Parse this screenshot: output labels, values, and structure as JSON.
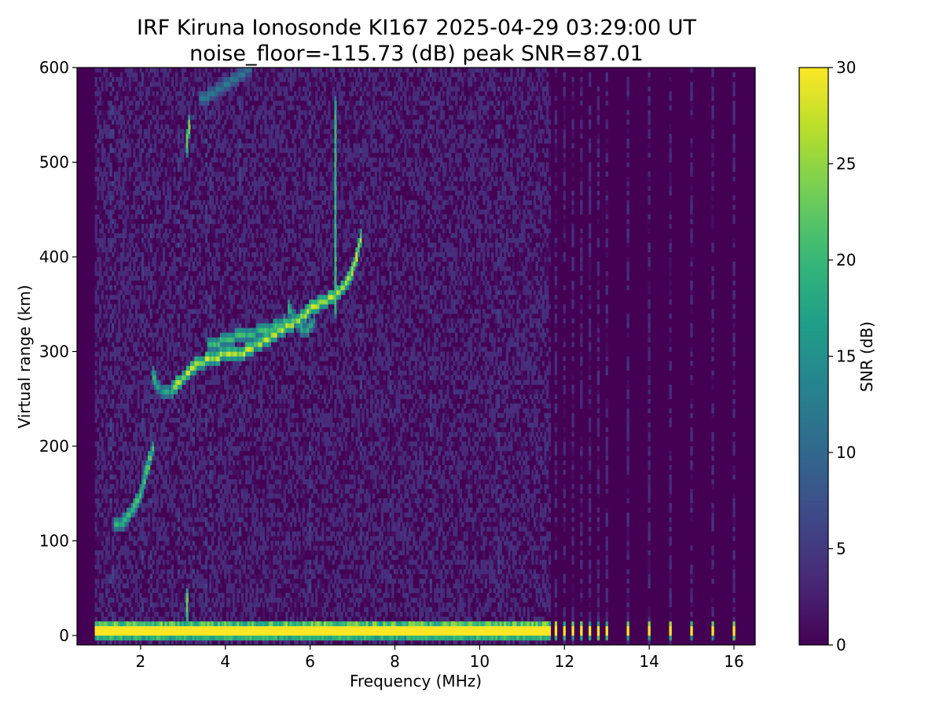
{
  "chart_data": {
    "type": "heatmap",
    "title_lines": [
      "IRF Kiruna Ionosonde KI167 2025-04-29 03:29:00  UT",
      "noise_floor=-115.73 (dB) peak SNR=87.01"
    ],
    "xlabel": "Frequency (MHz)",
    "ylabel": "Virtual range (km)",
    "colorbar_label": "SNR (dB)",
    "xlim": [
      0.5,
      16.5
    ],
    "ylim": [
      -10,
      600
    ],
    "clim": [
      0,
      30
    ],
    "x_ticks": [
      2,
      4,
      6,
      8,
      10,
      12,
      14,
      16
    ],
    "y_ticks": [
      0,
      100,
      200,
      300,
      400,
      500,
      600
    ],
    "colorbar_ticks": [
      0,
      5,
      10,
      15,
      20,
      25,
      30
    ],
    "colormap": [
      "#440154",
      "#482878",
      "#3e4989",
      "#31688e",
      "#26828e",
      "#1f9e89",
      "#35b779",
      "#6ece58",
      "#b5de2b",
      "#fde725"
    ],
    "data_freq_range": [
      0.95,
      16.0
    ],
    "continuous_band_freq_range": [
      0.95,
      11.65
    ],
    "discrete_column_freqs": [
      11.8,
      12.0,
      12.2,
      12.4,
      12.6,
      12.8,
      13.0,
      13.5,
      14.0,
      14.5,
      15.0,
      15.5,
      16.0
    ],
    "traces": [
      {
        "name": "ground-echo",
        "snr": 30,
        "points": [
          [
            0.95,
            0
          ],
          [
            2.0,
            0
          ],
          [
            4.0,
            0
          ],
          [
            6.0,
            0
          ],
          [
            8.0,
            0
          ],
          [
            10.0,
            0
          ],
          [
            11.65,
            0
          ]
        ]
      },
      {
        "name": "low-trace",
        "snr": 20,
        "points": [
          [
            1.4,
            115
          ],
          [
            1.6,
            120
          ],
          [
            1.8,
            132
          ],
          [
            2.0,
            148
          ],
          [
            2.15,
            175
          ],
          [
            2.3,
            198
          ]
        ]
      },
      {
        "name": "cusp",
        "snr": 18,
        "points": [
          [
            2.3,
            275
          ],
          [
            2.4,
            262
          ],
          [
            2.6,
            256
          ],
          [
            2.8,
            262
          ]
        ]
      },
      {
        "name": "f-trace",
        "snr": 26,
        "points": [
          [
            2.8,
            262
          ],
          [
            3.0,
            272
          ],
          [
            3.3,
            285
          ],
          [
            3.6,
            292
          ],
          [
            4.0,
            296
          ],
          [
            4.5,
            300
          ],
          [
            5.0,
            313
          ],
          [
            5.5,
            327
          ],
          [
            5.8,
            335
          ],
          [
            6.0,
            345
          ],
          [
            6.3,
            352
          ],
          [
            6.6,
            358
          ],
          [
            6.9,
            375
          ],
          [
            7.1,
            398
          ],
          [
            7.2,
            420
          ]
        ]
      },
      {
        "name": "upper-trace",
        "snr": 20,
        "points": [
          [
            3.6,
            305
          ],
          [
            4.0,
            312
          ],
          [
            4.5,
            318
          ],
          [
            5.0,
            322
          ],
          [
            5.4,
            330
          ]
        ]
      },
      {
        "name": "oblique",
        "snr": 18,
        "points": [
          [
            5.5,
            345
          ],
          [
            5.7,
            330
          ],
          [
            5.9,
            320
          ],
          [
            6.1,
            330
          ]
        ]
      },
      {
        "name": "multi-hop-vertical",
        "snr": 19,
        "points": [
          [
            6.6,
            340
          ],
          [
            6.6,
            400
          ],
          [
            6.62,
            480
          ],
          [
            6.62,
            560
          ]
        ]
      },
      {
        "name": "blob-3.1-520",
        "snr": 22,
        "points": [
          [
            3.1,
            512
          ],
          [
            3.12,
            525
          ],
          [
            3.15,
            540
          ]
        ]
      },
      {
        "name": "blob-3.1-25",
        "snr": 22,
        "points": [
          [
            3.1,
            18
          ],
          [
            3.1,
            30
          ],
          [
            3.12,
            40
          ]
        ]
      },
      {
        "name": "top-trace",
        "snr": 12,
        "points": [
          [
            3.4,
            565
          ],
          [
            3.8,
            575
          ],
          [
            4.2,
            588
          ],
          [
            4.6,
            598
          ]
        ]
      }
    ]
  }
}
